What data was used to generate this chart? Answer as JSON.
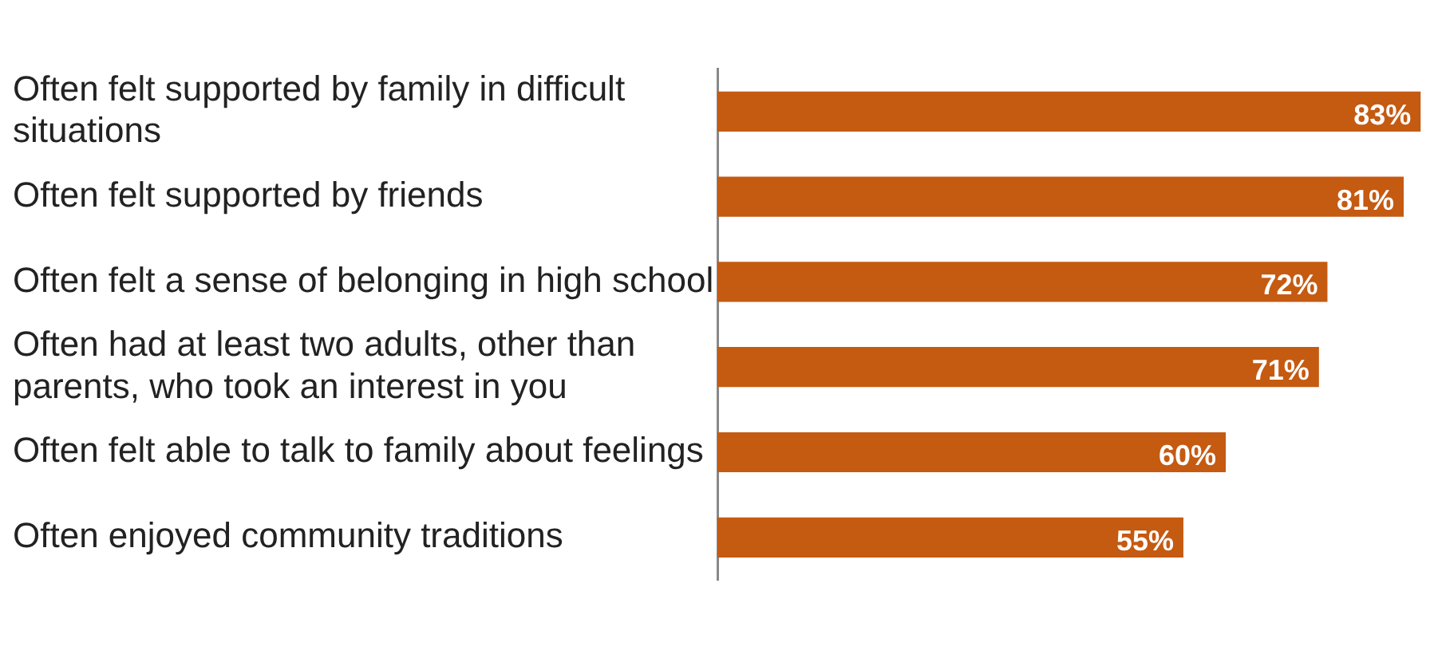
{
  "chart_data": {
    "type": "bar",
    "orientation": "horizontal",
    "categories": [
      "Often felt supported by family in difficult situations",
      "Often felt supported by friends",
      "Often felt a sense of belonging in high school",
      "Often had at least two adults, other than parents, who took an interest in you",
      "Often felt able to talk to family about feelings",
      "Often enjoyed community traditions"
    ],
    "values": [
      83,
      81,
      72,
      71,
      60,
      55
    ],
    "value_labels": [
      "83%",
      "81%",
      "72%",
      "71%",
      "60%",
      "55%"
    ],
    "color": "#c55a11"
  }
}
